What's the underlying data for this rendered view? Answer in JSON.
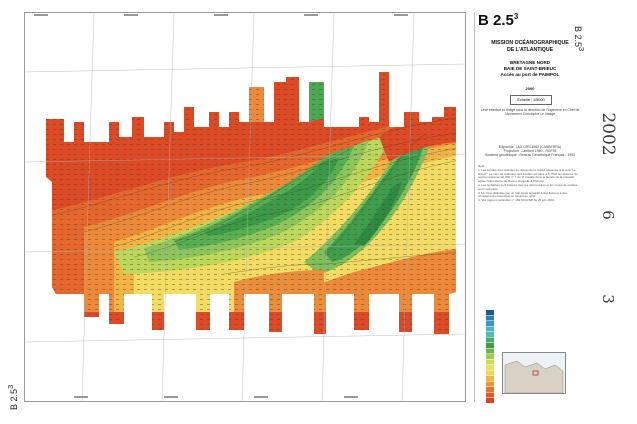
{
  "sheet": {
    "code": "B 2.5",
    "code_sup": "3",
    "side_code": "B 2.5",
    "side_code_sup": "3"
  },
  "panel": {
    "mission": "MISSION OCÉANOGRAPHIQUE",
    "mission_line2": "DE L'ATLANTIQUE",
    "region_line1": "BRETAGNE NORD",
    "region_line2": "BAIE DE SAINT-BRIEUC",
    "region_line3": "Accès au port de PAIMPOL",
    "year": "2000",
    "scale": "Échelle : 1/5000",
    "survey": "Levé effectué et rédigé sous la direction de l'Ingénieur en Chef de l'Armement Christophe Le Visage",
    "geodesy_line1": "Ellipsoïde : IAG GRS 1980 (CANBERRA)",
    "geodesy_line2": "Projection : Lambert 1980 - RGF93",
    "geodesy_line3": "Système géodésique : Réseau Géodésique Français - 1993",
    "notes_title": "Note :",
    "note1": "1. Les sondes sont réduites au niveau de la marée observée à la cote \"Le Grand\". Le zéro de réduction des sondes est situé à 5,7504 au-dessous du repère fondamental ONI n° 7 du 'Z' installé dans la façade de la nouvelle église Notre-Dame-de-Bonne-Nouvelle à Paimpol.",
    "note2": "2. Les isobathes sont tracées tous les demi-mètres et les zones de sondes sont mesurées.",
    "note3": "3. La zone délimitée par un trait épais apparaît à des liaisons à des compléments essentiels au complexe relief.",
    "note4": "4. Voir rapport particulier n° 156 MOA/NP du 25 juin 2001."
  },
  "stamps": {
    "year": "2002",
    "month": "6",
    "day": "3"
  },
  "legend_colors": [
    "#1e5a8c",
    "#2f7fb0",
    "#3b97c8",
    "#49b4cf",
    "#4fbfaa",
    "#4aaa6a",
    "#3f9a4c",
    "#67b84a",
    "#9ccc52",
    "#c8dc54",
    "#e9e25a",
    "#f4d450",
    "#f2b441",
    "#ee9437",
    "#e8742d",
    "#e25a26",
    "#d9441f"
  ],
  "colors": {
    "deep_red": "#dc4a26",
    "orange": "#ec8a3a",
    "yellow": "#f2dc64",
    "light_green": "#9cd06a",
    "green": "#45a84e"
  }
}
